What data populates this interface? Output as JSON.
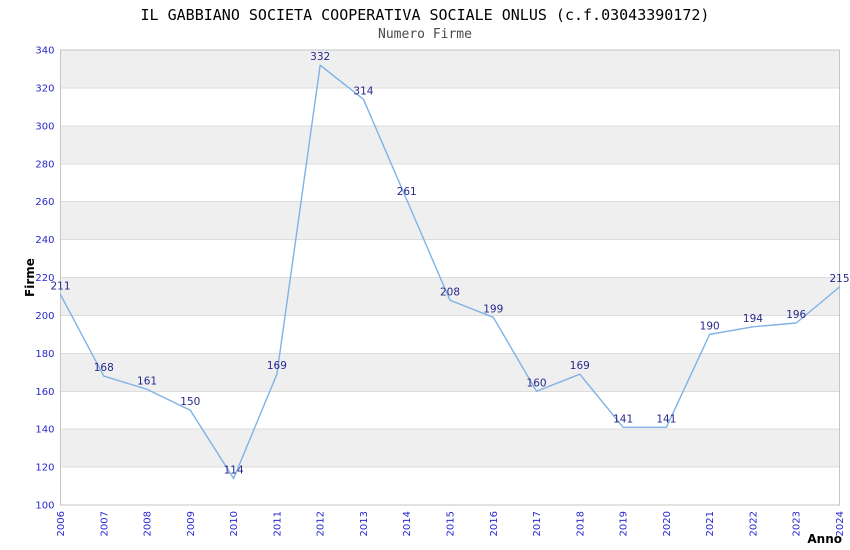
{
  "chart_data": {
    "type": "line",
    "title": "IL GABBIANO SOCIETA COOPERATIVA SOCIALE ONLUS (c.f.03043390172)",
    "subtitle": "Numero Firme",
    "xlabel": "Anno",
    "ylabel": "Firme",
    "categories": [
      "2006",
      "2007",
      "2008",
      "2009",
      "2010",
      "2011",
      "2012",
      "2013",
      "2014",
      "2015",
      "2016",
      "2017",
      "2018",
      "2019",
      "2020",
      "2021",
      "2022",
      "2023",
      "2024"
    ],
    "series": [
      {
        "name": "Numero Firme",
        "values": [
          211,
          168,
          161,
          150,
          114,
          169,
          332,
          314,
          261,
          208,
          199,
          160,
          169,
          141,
          141,
          190,
          194,
          196,
          215
        ]
      }
    ],
    "ylim": [
      100,
      340
    ],
    "ytick_step": 20,
    "grid": true,
    "legend": "none",
    "point_labels": true,
    "band_fill_alternating": true,
    "colors": {
      "line": "#7fb2e5",
      "point_label": "#28288c",
      "tick_label": "#2727cf",
      "band": "#efefef",
      "gridline": "#dcdcdc",
      "border": "#c6c6c6",
      "title": "#000000",
      "subtitle": "#4a4a4a",
      "axis_title": "#000000",
      "background": "#ffffff"
    }
  }
}
